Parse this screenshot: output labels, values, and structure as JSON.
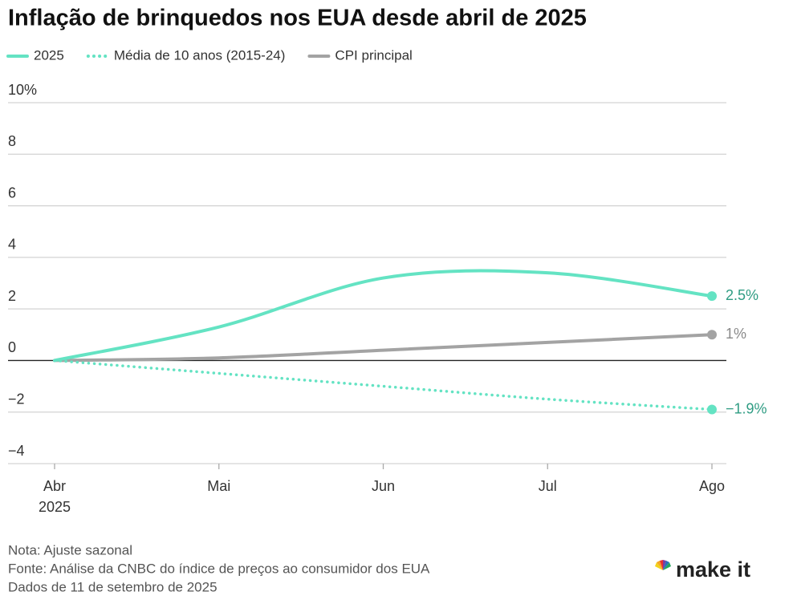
{
  "chart_data": {
    "type": "line",
    "title": "Inflação de brinquedos nos EUA desde abril de 2025",
    "categories": [
      "Abr",
      "Mai",
      "Jun",
      "Jul",
      "Ago"
    ],
    "year_label": "2025",
    "series": [
      {
        "name": "2025",
        "color": "#64e3c3",
        "style": "solid",
        "values": [
          0,
          1.3,
          3.2,
          3.4,
          2.5
        ],
        "end_label": "2.5%",
        "end_label_color": "#2f9c83"
      },
      {
        "name": "Média de 10 anos (2015-24)",
        "color": "#64e3c3",
        "style": "dotted",
        "values": [
          0,
          -0.5,
          -1.0,
          -1.5,
          -1.9
        ],
        "end_label": "−1.9%",
        "end_label_color": "#2f9c83"
      },
      {
        "name": "CPI principal",
        "color": "#a3a3a3",
        "style": "solid",
        "values": [
          0,
          0.1,
          0.4,
          0.7,
          1.0
        ],
        "end_label": "1%",
        "end_label_color": "#8a8a8a"
      }
    ],
    "ylim": [
      -4,
      10
    ],
    "yticks": [
      {
        "value": -4,
        "label": "−4"
      },
      {
        "value": -2,
        "label": "−2"
      },
      0,
      2,
      4,
      6,
      8,
      {
        "value": 10,
        "label": "10%"
      }
    ],
    "grid": true,
    "notes": [
      "Nota: Ajuste sazonal",
      "Fonte: Análise da CNBC do índice de preços ao consumidor dos EUA",
      "Dados de 11 de setembro de 2025"
    ],
    "brand": "make it"
  }
}
